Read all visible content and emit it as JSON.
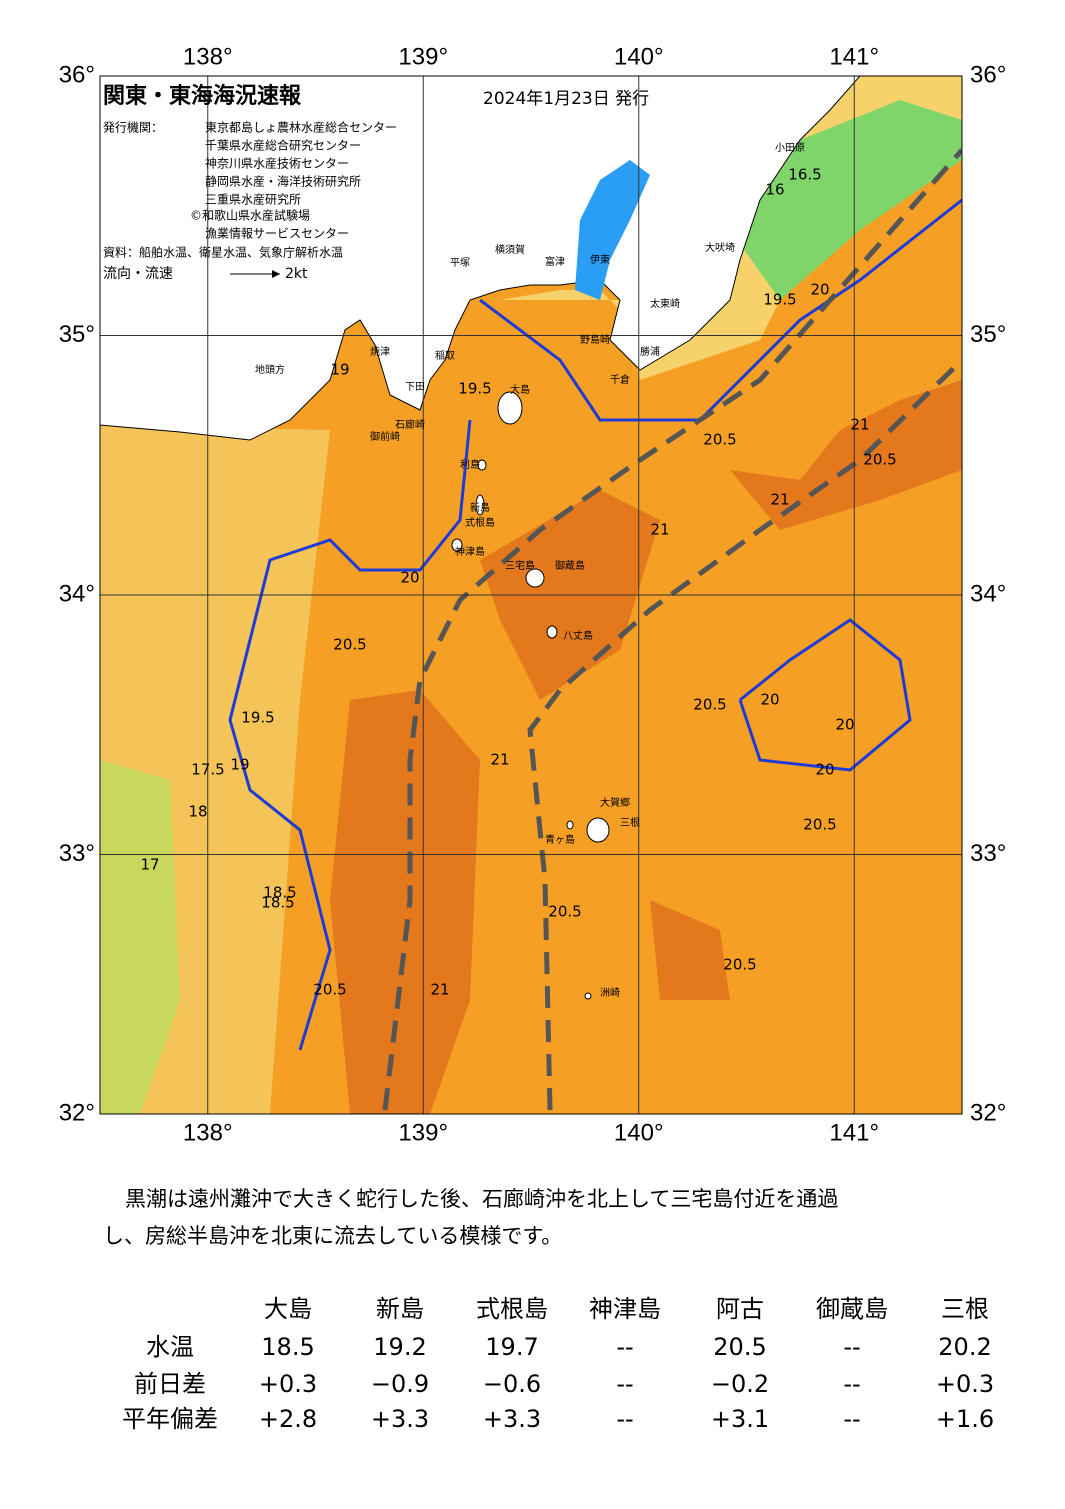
{
  "header": {
    "title": "関東・東海海況速報",
    "date": "2024年1月23日 発行",
    "issuer_label": "発行機関：",
    "issuers": [
      "東京都島しょ農林水産総合センター",
      "千葉県水産総合研究センター",
      "神奈川県水産技術センター",
      "静岡県水産・海洋技術研究所",
      "三重県水産研究所",
      "©和歌山県水産試験場",
      "漁業情報サービスセンター"
    ],
    "source": "資料：船舶水温、衛星水温、気象庁解析水温",
    "flow_label": "流向・流速",
    "flow_scale": "2kt"
  },
  "map": {
    "xlim": [
      137.5,
      141.5
    ],
    "ylim": [
      32,
      36
    ],
    "xticks": [
      {
        "value": 138,
        "label": "138°"
      },
      {
        "value": 139,
        "label": "139°"
      },
      {
        "value": 140,
        "label": "140°"
      },
      {
        "value": 141,
        "label": "141°"
      }
    ],
    "yticks": [
      {
        "value": 32,
        "label": "32°"
      },
      {
        "value": 33,
        "label": "33°"
      },
      {
        "value": 34,
        "label": "34°"
      },
      {
        "value": 35,
        "label": "35°"
      },
      {
        "value": 36,
        "label": "36°"
      }
    ],
    "place_names": [
      "大島",
      "利島",
      "新島",
      "式根島",
      "神津島",
      "三宅島",
      "御蔵島",
      "八丈島",
      "大賀郷",
      "三根",
      "青ヶ島",
      "洲崎",
      "野島崎",
      "千倉",
      "勝浦",
      "太東崎",
      "大吠埼",
      "小田原",
      "平塚",
      "横須賀",
      "富津",
      "伊東",
      "稲取",
      "下田",
      "石廊崎",
      "御前崎",
      "焼津",
      "地頭方"
    ],
    "contour_labels": [
      "19",
      "19.5",
      "20",
      "20.5",
      "21",
      "20.5",
      "21",
      "20.5",
      "20",
      "20",
      "20",
      "20.5",
      "21",
      "21",
      "20.5",
      "18.5",
      "18",
      "17.5",
      "17",
      "18.5",
      "19.5",
      "19",
      "20.5",
      "21",
      "20.5",
      "20.5",
      "16",
      "16.5",
      "19.5",
      "20"
    ]
  },
  "description": "黒潮は遠州灘沖で大きく蛇行した後、石廊崎沖を北上して三宅島付近を通過し、房総半島沖を北東に流去している模様です。",
  "table": {
    "columns": [
      "大島",
      "新島",
      "式根島",
      "神津島",
      "阿古",
      "御蔵島",
      "三根"
    ],
    "rows": [
      {
        "label": "水温",
        "cells": [
          "18.5",
          "19.2",
          "19.7",
          "--",
          "20.5",
          "--",
          "20.2"
        ]
      },
      {
        "label": "前日差",
        "cells": [
          "+0.3",
          "−0.9",
          "−0.6",
          "--",
          "−0.2",
          "--",
          "+0.3"
        ]
      },
      {
        "label": "平年偏差",
        "cells": [
          "+2.8",
          "+3.3",
          "+3.3",
          "--",
          "+3.1",
          "--",
          "+1.6"
        ]
      }
    ]
  }
}
